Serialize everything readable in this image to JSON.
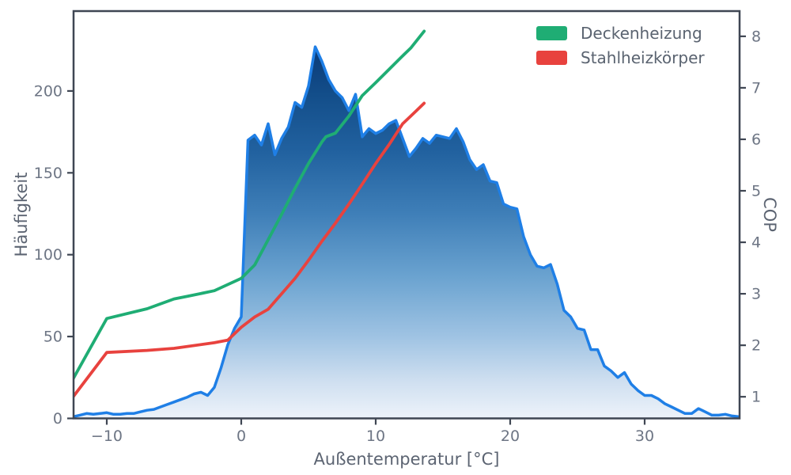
{
  "figure": {
    "background": "#ffffff",
    "spine_color": "#3f4653",
    "tick_label_color": "#6d7584",
    "axis_label_color": "#5c6472",
    "legend": [
      {
        "label": "Deckenheizung",
        "color": "#1fad74"
      },
      {
        "label": "Stahlheizkörper",
        "color": "#e8423e"
      }
    ]
  },
  "chart_data": {
    "type": "area",
    "title": "",
    "xlabel": "Außentemperatur [°C]",
    "ylabel_left": "Häufigkeit",
    "ylabel_right": "COP",
    "grid": false,
    "legend_position": "upper right",
    "legend_frame": false,
    "xlim": [
      -12.47,
      37.06
    ],
    "ylim_left": [
      0,
      248.8
    ],
    "ylim_right": [
      0.58,
      8.49
    ],
    "x_ticks": [
      -10,
      0,
      10,
      20,
      30
    ],
    "x_tick_labels": [
      "−10",
      "0",
      "10",
      "20",
      "30"
    ],
    "y_left_ticks": [
      0,
      50,
      100,
      150,
      200
    ],
    "y_left_tick_labels": [
      "0",
      "50",
      "100",
      "150",
      "200"
    ],
    "y_right_ticks": [
      1,
      2,
      3,
      4,
      5,
      6,
      7,
      8
    ],
    "y_right_tick_labels": [
      "1",
      "2",
      "3",
      "4",
      "5",
      "6",
      "7",
      "8"
    ],
    "series": [
      {
        "name": "Häufigkeit",
        "type": "area",
        "axis": "left",
        "line_color": "#1f7fe6",
        "line_width": 3.5,
        "fill_gradient": [
          [
            0,
            "#0a3a78"
          ],
          [
            0.13,
            "#134e8a"
          ],
          [
            0.28,
            "#21619f"
          ],
          [
            0.45,
            "#3f7fb8"
          ],
          [
            0.62,
            "#6ba3d0"
          ],
          [
            0.78,
            "#9fc3e3"
          ],
          [
            0.9,
            "#cfdff0"
          ],
          [
            1,
            "#edf3fa"
          ]
        ],
        "x_start": -12.5,
        "x_step": 0.5,
        "values": [
          1,
          2,
          3,
          2.5,
          3,
          3.5,
          2.5,
          2.5,
          3,
          3,
          4,
          5,
          5.5,
          7,
          8.5,
          10,
          11.5,
          13,
          15,
          16,
          14,
          19,
          31,
          45,
          55,
          62,
          170,
          173,
          167,
          180,
          161,
          171,
          178,
          193,
          190,
          203,
          227,
          218,
          207,
          200,
          196,
          188,
          198,
          172,
          177,
          174,
          176,
          180,
          182,
          171,
          160,
          165,
          171,
          168,
          173,
          172,
          171,
          177,
          169,
          158,
          152,
          155,
          145,
          144,
          131,
          129,
          128,
          111,
          100,
          93,
          92,
          94,
          82,
          66,
          62,
          55,
          54,
          42,
          42,
          32,
          29,
          25,
          28,
          21,
          17,
          14,
          14,
          12,
          9,
          7,
          5,
          3,
          3,
          6,
          4,
          2,
          2,
          2.5,
          1.5,
          1
        ]
      },
      {
        "name": "Deckenheizung",
        "type": "line",
        "axis": "right",
        "color": "#1fad74",
        "line_width": 3.8,
        "points": [
          [
            -12.5,
            1.35
          ],
          [
            -10,
            2.52
          ],
          [
            -7,
            2.71
          ],
          [
            -5,
            2.9
          ],
          [
            -4,
            2.95
          ],
          [
            -2,
            3.06
          ],
          [
            0,
            3.3
          ],
          [
            1,
            3.56
          ],
          [
            2,
            4.05
          ],
          [
            3,
            4.54
          ],
          [
            4,
            5.05
          ],
          [
            5,
            5.53
          ],
          [
            6,
            5.95
          ],
          [
            6.3,
            6.05
          ],
          [
            7,
            6.12
          ],
          [
            8,
            6.45
          ],
          [
            9,
            6.85
          ],
          [
            10,
            7.1
          ],
          [
            11,
            7.36
          ],
          [
            12,
            7.62
          ],
          [
            12.6,
            7.77
          ],
          [
            13.6,
            8.1
          ]
        ]
      },
      {
        "name": "Stahlheizkörper",
        "type": "line",
        "axis": "right",
        "color": "#e8423e",
        "line_width": 3.8,
        "points": [
          [
            -12.5,
            1.0
          ],
          [
            -10,
            1.86
          ],
          [
            -7,
            1.9
          ],
          [
            -5,
            1.94
          ],
          [
            -2,
            2.05
          ],
          [
            -1,
            2.1
          ],
          [
            0,
            2.35
          ],
          [
            1,
            2.55
          ],
          [
            2,
            2.7
          ],
          [
            3,
            3.0
          ],
          [
            4,
            3.3
          ],
          [
            5,
            3.65
          ],
          [
            6,
            4.02
          ],
          [
            7,
            4.37
          ],
          [
            8,
            4.74
          ],
          [
            9,
            5.13
          ],
          [
            10,
            5.53
          ],
          [
            11,
            5.9
          ],
          [
            12,
            6.3
          ],
          [
            13,
            6.55
          ],
          [
            13.6,
            6.7
          ]
        ]
      }
    ]
  }
}
